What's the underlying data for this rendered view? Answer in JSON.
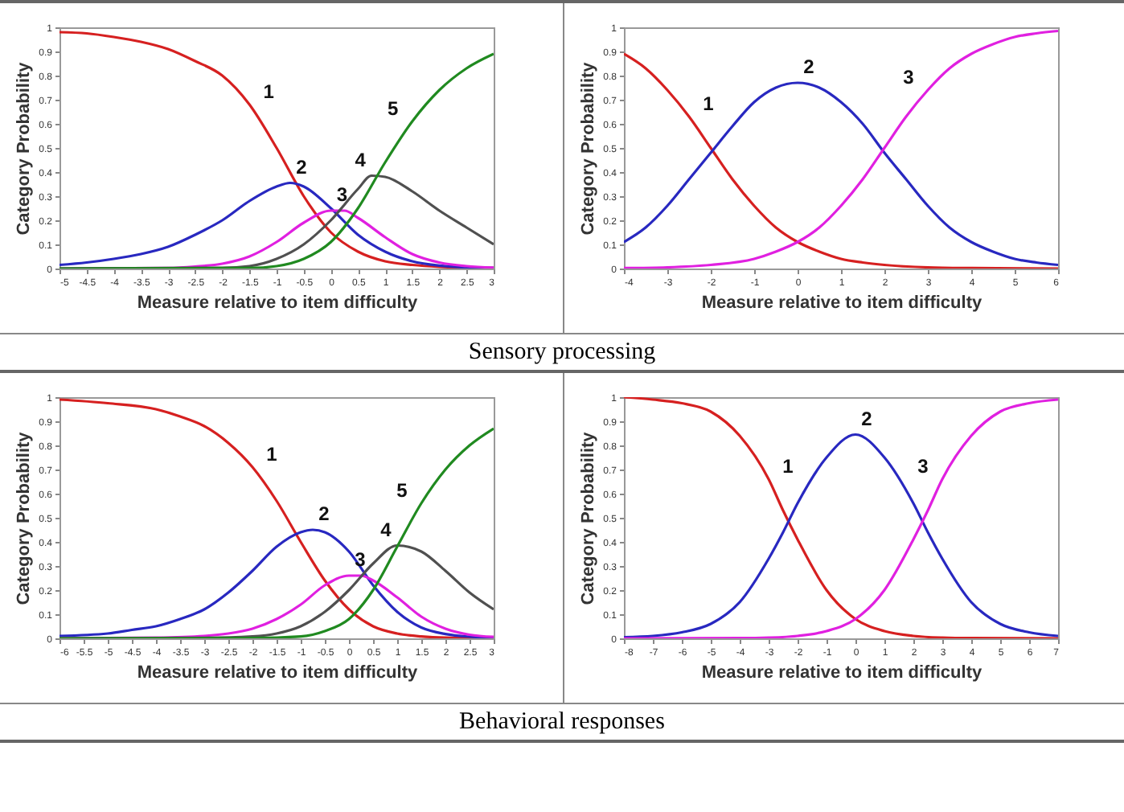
{
  "chart_data": [
    {
      "type": "line",
      "xlabel": "Measure relative to item difficulty",
      "ylabel": "Category Probability",
      "xlim": [
        -5,
        3
      ],
      "xticks": [
        -5,
        -4.5,
        -4,
        -3.5,
        -3,
        -2.5,
        -2,
        -1.5,
        -1,
        -0.5,
        0,
        0.5,
        1,
        1.5,
        2,
        2.5,
        3
      ],
      "ylim": [
        0,
        1
      ],
      "yticks": [
        0,
        0.1,
        0.2,
        0.3,
        0.4,
        0.5,
        0.6,
        0.7,
        0.8,
        0.9,
        1
      ],
      "annotations": [
        "Sensory processing"
      ],
      "series": [
        {
          "name": "1",
          "color": "#d62020",
          "x": [
            -5,
            -4.5,
            -4,
            -3.5,
            -3,
            -2.5,
            -2,
            -1.5,
            -1,
            -0.5,
            0,
            0.5,
            1,
            1.5,
            2,
            2.5,
            3
          ],
          "values": [
            0.98,
            0.975,
            0.96,
            0.94,
            0.91,
            0.86,
            0.8,
            0.68,
            0.5,
            0.3,
            0.15,
            0.07,
            0.03,
            0.015,
            0.007,
            0.003,
            0.002
          ]
        },
        {
          "name": "2",
          "color": "#2828c0",
          "x": [
            -5,
            -4.5,
            -4,
            -3.5,
            -3,
            -2.5,
            -2,
            -1.5,
            -1,
            -0.75,
            -0.5,
            0,
            0.5,
            1,
            1.5,
            2,
            2.5,
            3
          ],
          "values": [
            0.015,
            0.025,
            0.04,
            0.06,
            0.09,
            0.14,
            0.2,
            0.28,
            0.34,
            0.355,
            0.34,
            0.25,
            0.14,
            0.07,
            0.03,
            0.012,
            0.005,
            0.002
          ]
        },
        {
          "name": "3",
          "color": "#e020e0",
          "x": [
            -5,
            -3,
            -2.5,
            -2,
            -1.5,
            -1,
            -0.5,
            0,
            0.25,
            0.5,
            1,
            1.5,
            2,
            2.5,
            3
          ],
          "values": [
            0,
            0.002,
            0.008,
            0.02,
            0.05,
            0.11,
            0.19,
            0.24,
            0.24,
            0.21,
            0.13,
            0.06,
            0.025,
            0.01,
            0.004
          ]
        },
        {
          "name": "4",
          "color": "#505050",
          "x": [
            -5,
            -2,
            -1.5,
            -1,
            -0.5,
            0,
            0.5,
            0.75,
            1,
            1.5,
            2,
            2.5,
            3
          ],
          "values": [
            0,
            0.003,
            0.01,
            0.04,
            0.1,
            0.2,
            0.33,
            0.385,
            0.38,
            0.32,
            0.24,
            0.17,
            0.1
          ]
        },
        {
          "name": "5",
          "color": "#208a20",
          "x": [
            -5,
            -1.5,
            -1,
            -0.5,
            0,
            0.5,
            1,
            1.5,
            2,
            2.5,
            3
          ],
          "values": [
            0,
            0.002,
            0.01,
            0.04,
            0.11,
            0.25,
            0.44,
            0.61,
            0.74,
            0.83,
            0.89
          ]
        }
      ]
    },
    {
      "type": "line",
      "xlabel": "Measure relative to item difficulty",
      "ylabel": "Category Probability",
      "xlim": [
        -4,
        6
      ],
      "xticks": [
        -4,
        -3,
        -2,
        -1,
        0,
        1,
        2,
        3,
        4,
        5,
        6
      ],
      "ylim": [
        0,
        1
      ],
      "yticks": [
        0,
        0.1,
        0.2,
        0.3,
        0.4,
        0.5,
        0.6,
        0.7,
        0.8,
        0.9,
        1
      ],
      "series": [
        {
          "name": "1",
          "color": "#d62020",
          "x": [
            -4,
            -3.5,
            -3,
            -2.5,
            -2,
            -1.5,
            -1,
            -0.5,
            0,
            0.5,
            1,
            1.5,
            2,
            3,
            4,
            6
          ],
          "values": [
            0.89,
            0.83,
            0.74,
            0.63,
            0.5,
            0.37,
            0.26,
            0.17,
            0.11,
            0.07,
            0.04,
            0.025,
            0.015,
            0.005,
            0.002,
            0
          ]
        },
        {
          "name": "2",
          "color": "#2828c0",
          "x": [
            -4,
            -3.5,
            -3,
            -2.5,
            -2,
            -1.5,
            -1,
            -0.5,
            0,
            0.5,
            1,
            1.5,
            2,
            2.5,
            3,
            3.5,
            4,
            4.5,
            5,
            5.5,
            6
          ],
          "values": [
            0.11,
            0.17,
            0.26,
            0.37,
            0.48,
            0.59,
            0.69,
            0.75,
            0.77,
            0.75,
            0.69,
            0.6,
            0.48,
            0.37,
            0.26,
            0.17,
            0.11,
            0.07,
            0.04,
            0.025,
            0.015
          ]
        },
        {
          "name": "3",
          "color": "#e020e0",
          "x": [
            -4,
            -3,
            -2,
            -1,
            -0.5,
            0,
            0.5,
            1,
            1.5,
            2,
            2.5,
            3,
            3.5,
            4,
            4.5,
            5,
            5.5,
            6
          ],
          "values": [
            0.002,
            0.005,
            0.015,
            0.04,
            0.07,
            0.11,
            0.17,
            0.26,
            0.37,
            0.5,
            0.63,
            0.74,
            0.83,
            0.89,
            0.93,
            0.96,
            0.975,
            0.985
          ]
        }
      ]
    },
    {
      "type": "line",
      "xlabel": "Measure relative to item difficulty",
      "ylabel": "Category Probability",
      "xlim": [
        -6,
        3
      ],
      "xticks": [
        -6,
        -5.5,
        -5,
        -4.5,
        -4,
        -3.5,
        -3,
        -2.5,
        -2,
        -1.5,
        -1,
        -0.5,
        0,
        0.5,
        1,
        1.5,
        2,
        2.5,
        3
      ],
      "ylim": [
        0,
        1
      ],
      "yticks": [
        0,
        0.1,
        0.2,
        0.3,
        0.4,
        0.5,
        0.6,
        0.7,
        0.8,
        0.9,
        1
      ],
      "annotations": [
        "Behavioral responses"
      ],
      "series": [
        {
          "name": "1",
          "color": "#d62020",
          "x": [
            -6,
            -5,
            -4,
            -3.5,
            -3,
            -2.5,
            -2,
            -1.5,
            -1,
            -0.5,
            0,
            0.5,
            1,
            1.5,
            2,
            3
          ],
          "values": [
            0.99,
            0.975,
            0.95,
            0.92,
            0.88,
            0.81,
            0.71,
            0.57,
            0.4,
            0.24,
            0.12,
            0.05,
            0.02,
            0.008,
            0.003,
            0.001
          ]
        },
        {
          "name": "2",
          "color": "#2828c0",
          "x": [
            -6,
            -5,
            -4.5,
            -4,
            -3.5,
            -3,
            -2.5,
            -2,
            -1.5,
            -1,
            -0.75,
            -0.5,
            0,
            0.5,
            1,
            1.5,
            2,
            2.5,
            3
          ],
          "values": [
            0.01,
            0.02,
            0.035,
            0.05,
            0.08,
            0.12,
            0.19,
            0.28,
            0.38,
            0.44,
            0.45,
            0.44,
            0.36,
            0.22,
            0.11,
            0.045,
            0.018,
            0.007,
            0.003
          ]
        },
        {
          "name": "3",
          "color": "#e020e0",
          "x": [
            -6,
            -4,
            -3,
            -2.5,
            -2,
            -1.5,
            -1,
            -0.5,
            0,
            0.25,
            0.5,
            1,
            1.5,
            2,
            2.5,
            3
          ],
          "values": [
            0,
            0.003,
            0.01,
            0.02,
            0.04,
            0.08,
            0.14,
            0.22,
            0.26,
            0.26,
            0.24,
            0.17,
            0.09,
            0.04,
            0.015,
            0.006
          ]
        },
        {
          "name": "4",
          "color": "#505050",
          "x": [
            -6,
            -3,
            -2,
            -1.5,
            -1,
            -0.5,
            0,
            0.5,
            1,
            1.5,
            2,
            2.5,
            3
          ],
          "values": [
            0,
            0.002,
            0.008,
            0.02,
            0.05,
            0.11,
            0.2,
            0.31,
            0.385,
            0.36,
            0.28,
            0.19,
            0.12
          ]
        },
        {
          "name": "5",
          "color": "#208a20",
          "x": [
            -6,
            -2,
            -1,
            -0.5,
            0,
            0.5,
            1,
            1.5,
            2,
            2.5,
            3
          ],
          "values": [
            0,
            0.001,
            0.008,
            0.03,
            0.08,
            0.2,
            0.38,
            0.56,
            0.7,
            0.8,
            0.87
          ]
        }
      ]
    },
    {
      "type": "line",
      "xlabel": "Measure relative to item difficulty",
      "ylabel": "Category Probability",
      "xlim": [
        -8,
        7
      ],
      "xticks": [
        -8,
        -7,
        -6,
        -5,
        -4,
        -3,
        -2,
        -1,
        0,
        1,
        2,
        3,
        4,
        5,
        6,
        7
      ],
      "ylim": [
        0,
        1
      ],
      "yticks": [
        0,
        0.1,
        0.2,
        0.3,
        0.4,
        0.5,
        0.6,
        0.7,
        0.8,
        0.9,
        1
      ],
      "series": [
        {
          "name": "1",
          "color": "#d62020",
          "x": [
            -8,
            -7,
            -6,
            -5,
            -4,
            -3,
            -2.5,
            -2,
            -1,
            0,
            1,
            2,
            3,
            4,
            7
          ],
          "values": [
            1.0,
            0.99,
            0.975,
            0.94,
            0.84,
            0.66,
            0.53,
            0.41,
            0.2,
            0.08,
            0.03,
            0.01,
            0.003,
            0.001,
            0
          ]
        },
        {
          "name": "2",
          "color": "#2828c0",
          "x": [
            -8,
            -7,
            -6,
            -5,
            -4,
            -3,
            -2.5,
            -2,
            -1,
            0,
            1,
            2,
            2.5,
            3,
            4,
            5,
            6,
            7
          ],
          "values": [
            0.005,
            0.01,
            0.025,
            0.06,
            0.15,
            0.33,
            0.44,
            0.56,
            0.75,
            0.845,
            0.75,
            0.56,
            0.44,
            0.33,
            0.15,
            0.06,
            0.025,
            0.01
          ]
        },
        {
          "name": "3",
          "color": "#e020e0",
          "x": [
            -8,
            -4,
            -3,
            -2,
            -1,
            0,
            1,
            2,
            2.5,
            3,
            4,
            5,
            6,
            7
          ],
          "values": [
            0,
            0.001,
            0.003,
            0.01,
            0.03,
            0.08,
            0.2,
            0.41,
            0.53,
            0.66,
            0.84,
            0.94,
            0.975,
            0.99
          ]
        }
      ]
    }
  ]
}
